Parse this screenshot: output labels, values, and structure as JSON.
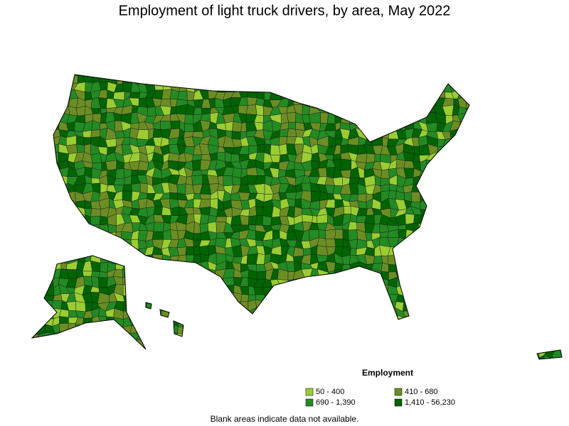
{
  "title": "Employment of light truck drivers, by area, May 2022",
  "legend": {
    "title": "Employment",
    "items": [
      {
        "label": "50 - 400",
        "color": "#9acd32"
      },
      {
        "label": "410 - 680",
        "color": "#6b8e23"
      },
      {
        "label": "690 - 1,390",
        "color": "#228b22"
      },
      {
        "label": "1,410 - 56,230",
        "color": "#006400"
      }
    ]
  },
  "footnote": "Blank areas indicate data not available."
}
